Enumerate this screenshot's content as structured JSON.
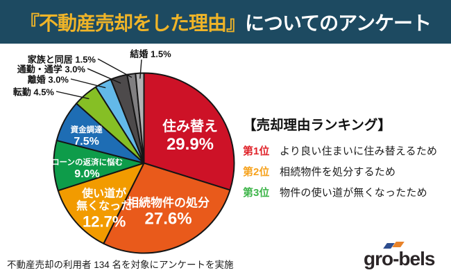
{
  "header": {
    "title_highlight": "『不動産売却をした理由』",
    "title_rest": "についてのアンケート",
    "bg_color": "#1d4a61",
    "highlight_color": "#efb428",
    "text_color": "#ffffff"
  },
  "chart_data": {
    "type": "pie",
    "title": "不動産売却をした理由",
    "start_angle_deg": 0,
    "direction": "clockwise",
    "legend_position": "none",
    "slices": [
      {
        "label": "住み替え",
        "label_display": "住み替え",
        "value": 29.9,
        "pct": "29.9%",
        "color": "#cd1227"
      },
      {
        "label": "相続物件の処分",
        "label_display": "相続物件の処分",
        "value": 27.6,
        "pct": "27.6%",
        "color": "#e95a1b"
      },
      {
        "label": "使い道が無くなった",
        "label_display": "使い道が\n無くなった",
        "value": 12.7,
        "pct": "12.7%",
        "color": "#f29b00"
      },
      {
        "label": "ローンの返済に悩む",
        "label_display": "ローンの返済に悩む",
        "value": 9.0,
        "pct": "9.0%",
        "color": "#0e9c4a"
      },
      {
        "label": "資金調達",
        "label_display": "資金調達",
        "value": 7.5,
        "pct": "7.5%",
        "color": "#1e6db4"
      },
      {
        "label": "転勤",
        "label_display": "転勤",
        "value": 4.5,
        "pct": "4.5%",
        "color": "#86bf25"
      },
      {
        "label": "離婚",
        "label_display": "離婚",
        "value": 3.0,
        "pct": "3.0%",
        "color": "#63b9e8"
      },
      {
        "label": "通勤・通学",
        "label_display": "通勤・通学",
        "value": 3.0,
        "pct": "3.0%",
        "color": "#4d4a4b"
      },
      {
        "label": "家族と同居",
        "label_display": "家族と同居",
        "value": 1.5,
        "pct": "1.5%",
        "color": "#807f81"
      },
      {
        "label": "結婚",
        "label_display": "結婚",
        "value": 1.5,
        "pct": "1.5%",
        "color": "#b3b3b5"
      }
    ]
  },
  "ranking": {
    "title": "【売却理由ランキング】",
    "items": [
      {
        "rank": "第1位",
        "reason": "より良い住まいに住み替えるため",
        "color": "#e0232a"
      },
      {
        "rank": "第2位",
        "reason": "相続物件を処分するため",
        "color": "#f6a21d"
      },
      {
        "rank": "第3位",
        "reason": "物件の使い道が無くなったため",
        "color": "#3eb54a"
      }
    ]
  },
  "footer": {
    "note": "不動産売却の利用者 134 名を対象にアンケートを実施"
  },
  "logo": {
    "text": "gro-bels",
    "accent_left_color": "#2e4d8e",
    "accent_right_color": "#e8832a"
  }
}
